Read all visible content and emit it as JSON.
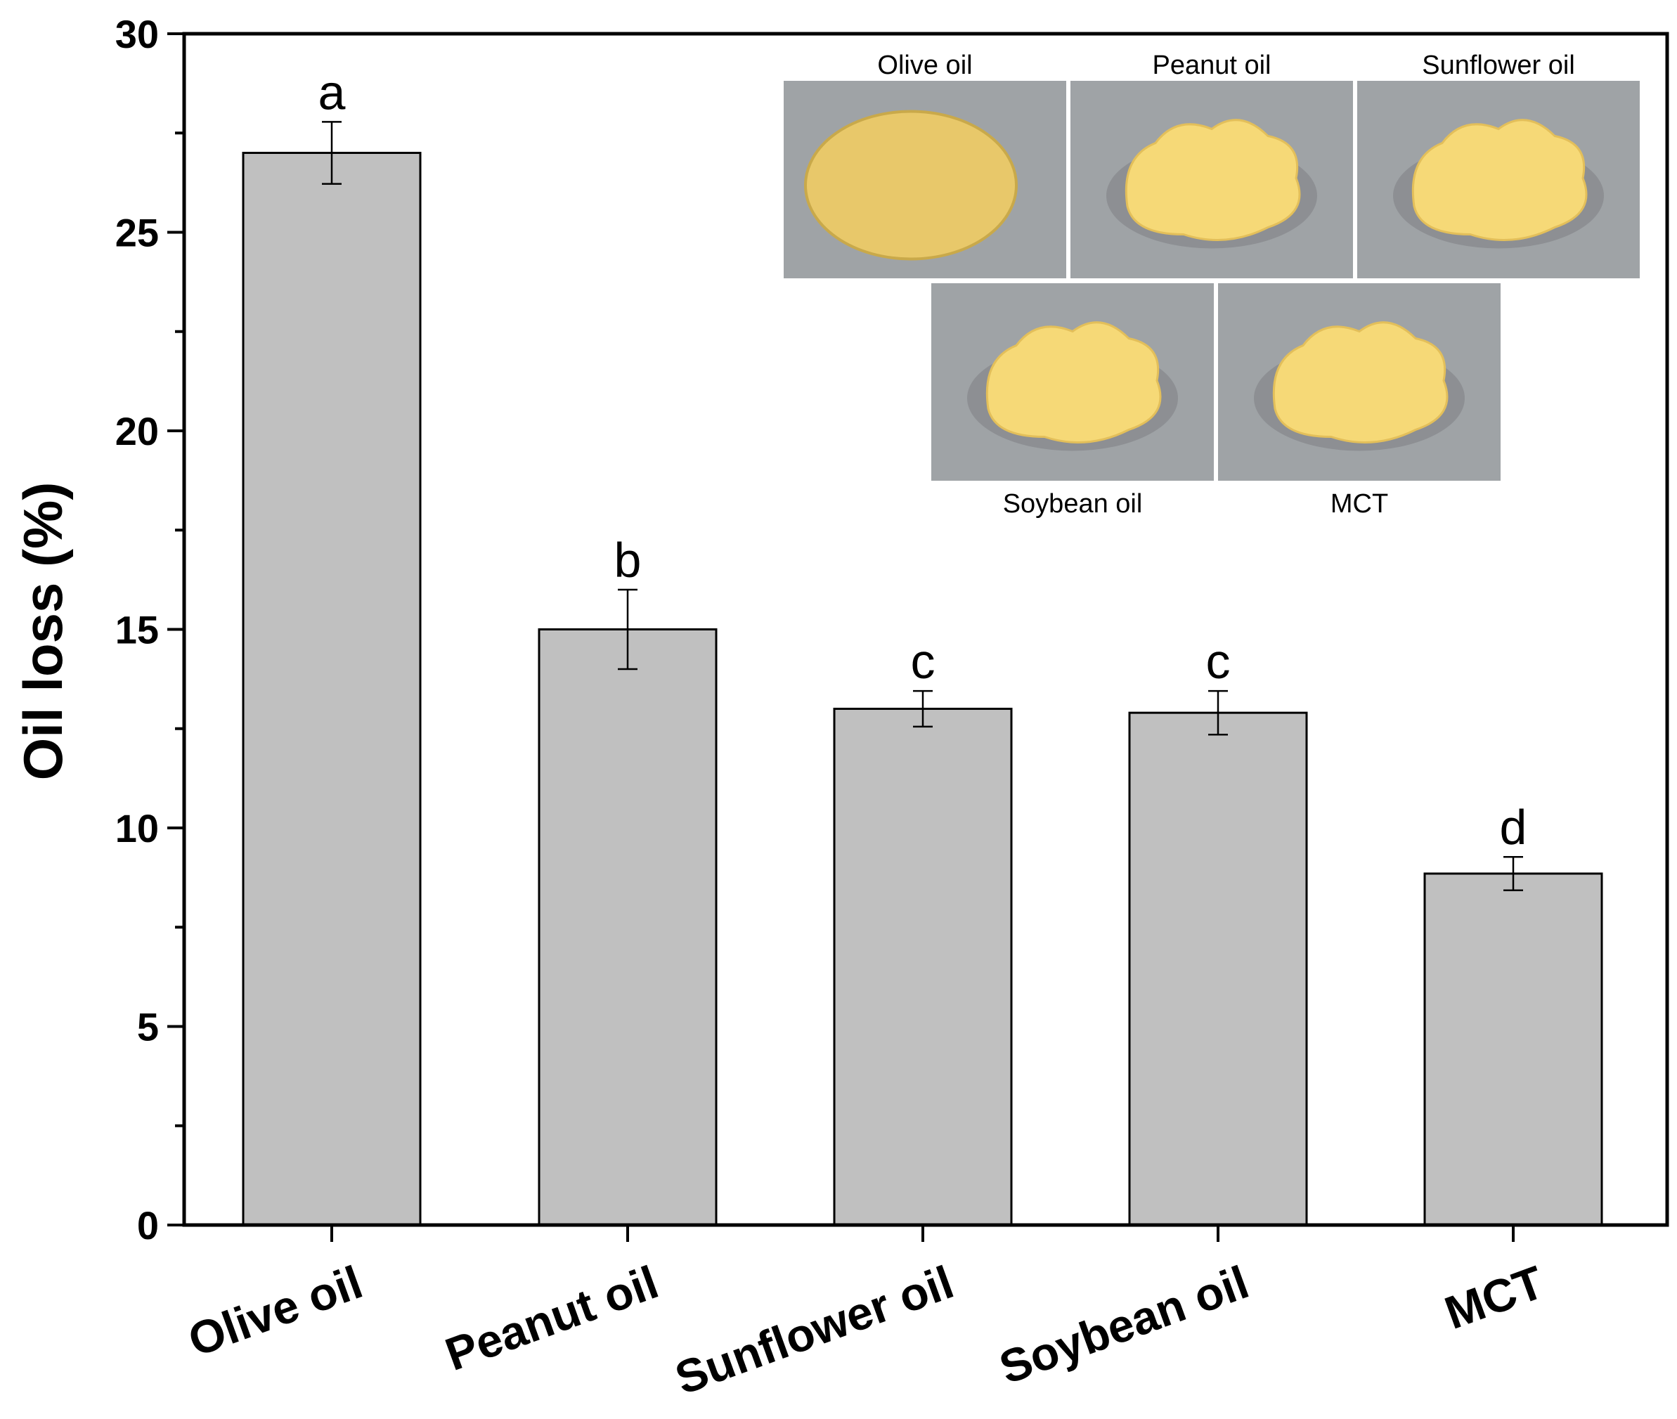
{
  "chart_data": {
    "type": "bar",
    "title": "",
    "xlabel": "",
    "ylabel": "Oil loss (%)",
    "ylim": [
      0,
      30
    ],
    "yticks": [
      "0",
      "5",
      "10",
      "15",
      "20",
      "25",
      "30"
    ],
    "categories": [
      "Olive oil",
      "Peanut oil",
      "Sunflower oil",
      "Soybean oil",
      "MCT"
    ],
    "values": [
      27.0,
      15.0,
      13.0,
      12.9,
      8.85
    ],
    "errors": [
      0.78,
      1.0,
      0.45,
      0.55,
      0.42
    ],
    "significance": [
      "a",
      "b",
      "c",
      "c",
      "d"
    ],
    "bar_color": "#c0c0c0",
    "inset": {
      "top_labels": [
        "Olive oil",
        "Peanut oil",
        "Sunflower oil"
      ],
      "bottom_labels": [
        "Soybean oil",
        "MCT"
      ],
      "photo_background": "#9fa3a6",
      "sample_color_liquid": "#e8c86a",
      "sample_color_gel": "#f6d977"
    }
  }
}
